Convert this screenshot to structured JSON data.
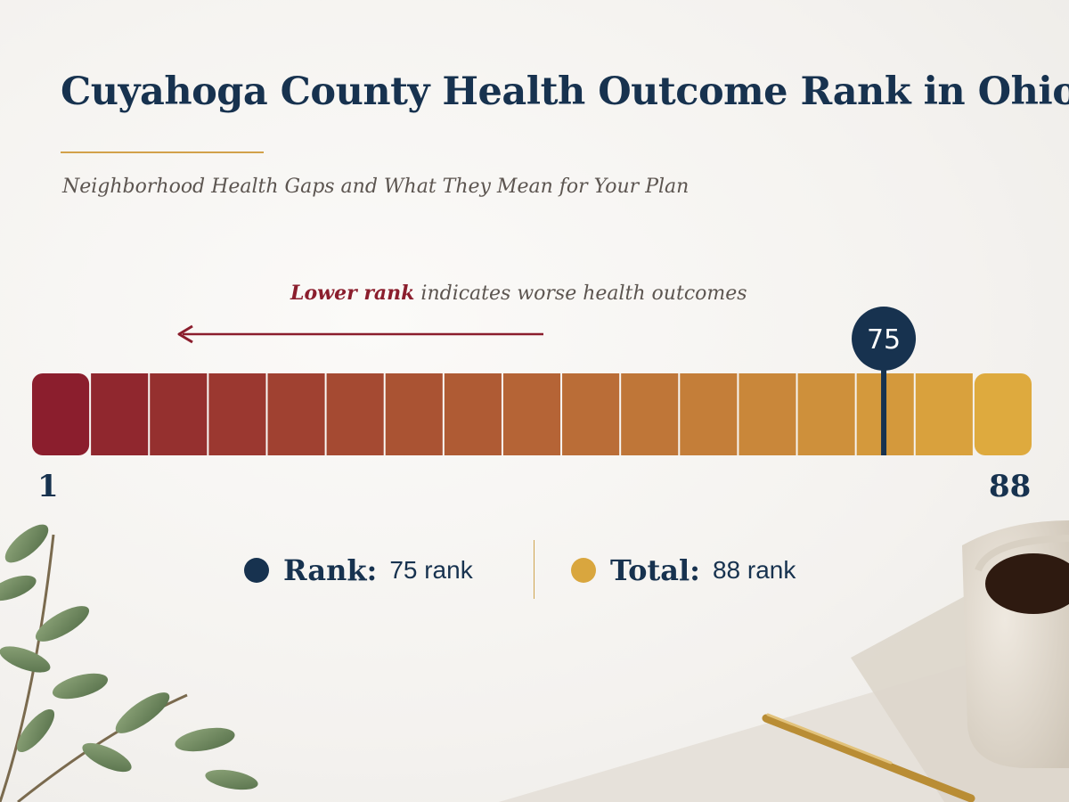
{
  "title": "Cuyahoga County Health Outcome Rank in Ohio",
  "subtitle": "Neighborhood Health Gaps and What They Mean for Your Plan",
  "hint": {
    "emphasis": "Lower rank",
    "rest": " indicates worse health outcomes"
  },
  "legend": {
    "rank_label": "Rank:",
    "rank_value": "75 rank",
    "total_label": "Total:",
    "total_value": "88 rank"
  },
  "colors": {
    "navy": "#17324f",
    "gold": "#d9a63e",
    "crimson": "#8b1e2d"
  },
  "chart_data": {
    "type": "bar",
    "title": "Cuyahoga County Health Outcome Rank in Ohio",
    "x_range": [
      1,
      88
    ],
    "tick_labels": [
      "1",
      "88"
    ],
    "marker_value": 75,
    "marker_label": "75",
    "segment_count": 17
  }
}
